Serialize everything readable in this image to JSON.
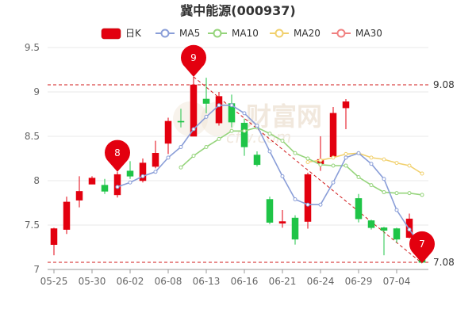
{
  "chart_data": {
    "type": "candlestick",
    "title": "冀中能源(000937)",
    "legend": [
      "日K",
      "MA5",
      "MA10",
      "MA20",
      "MA30"
    ],
    "colors": {
      "up": "#e3000f",
      "down": "#1fc447",
      "ma5": "#8a9ed8",
      "ma10": "#95d47b",
      "ma20": "#f1d06d",
      "ma30": "#f08080",
      "level_line": "#d0191a",
      "pin": "#e3000f"
    },
    "ylim": [
      7,
      9.5
    ],
    "yticks": [
      "7",
      "7.5",
      "8",
      "8.5",
      "9",
      "9.5"
    ],
    "xticks": [
      {
        "label": "05-25",
        "index": 0
      },
      {
        "label": "05-30",
        "index": 3
      },
      {
        "label": "06-02",
        "index": 6
      },
      {
        "label": "06-08",
        "index": 9
      },
      {
        "label": "06-13",
        "index": 12
      },
      {
        "label": "06-16",
        "index": 15
      },
      {
        "label": "06-21",
        "index": 18
      },
      {
        "label": "06-24",
        "index": 21
      },
      {
        "label": "06-29",
        "index": 24
      },
      {
        "label": "07-04",
        "index": 27
      }
    ],
    "candles": [
      {
        "o": 7.28,
        "c": 7.46,
        "h": 7.47,
        "l": 7.16
      },
      {
        "o": 7.45,
        "c": 7.76,
        "h": 7.82,
        "l": 7.4
      },
      {
        "o": 7.78,
        "c": 7.88,
        "h": 8.05,
        "l": 7.7
      },
      {
        "o": 7.96,
        "c": 8.03,
        "h": 8.05,
        "l": 7.96
      },
      {
        "o": 7.95,
        "c": 7.88,
        "h": 8.02,
        "l": 7.85
      },
      {
        "o": 7.84,
        "c": 8.07,
        "h": 8.1,
        "l": 7.81
      },
      {
        "o": 8.11,
        "c": 8.05,
        "h": 8.22,
        "l": 8.02
      },
      {
        "o": 8.0,
        "c": 8.2,
        "h": 8.25,
        "l": 7.98
      },
      {
        "o": 8.16,
        "c": 8.31,
        "h": 8.45,
        "l": 8.14
      },
      {
        "o": 8.42,
        "c": 8.67,
        "h": 8.71,
        "l": 8.3
      },
      {
        "o": 8.67,
        "c": 8.66,
        "h": 8.81,
        "l": 8.6
      },
      {
        "o": 8.5,
        "c": 9.08,
        "h": 9.17,
        "l": 8.5
      },
      {
        "o": 8.92,
        "c": 8.87,
        "h": 9.16,
        "l": 8.76
      },
      {
        "o": 8.65,
        "c": 8.95,
        "h": 9.0,
        "l": 8.62
      },
      {
        "o": 8.87,
        "c": 8.66,
        "h": 8.97,
        "l": 8.6
      },
      {
        "o": 8.65,
        "c": 8.38,
        "h": 8.7,
        "l": 8.28
      },
      {
        "o": 8.29,
        "c": 8.18,
        "h": 8.33,
        "l": 8.16
      },
      {
        "o": 7.79,
        "c": 7.53,
        "h": 7.82,
        "l": 7.51
      },
      {
        "o": 7.52,
        "c": 7.54,
        "h": 7.67,
        "l": 7.47
      },
      {
        "o": 7.58,
        "c": 7.34,
        "h": 7.61,
        "l": 7.28
      },
      {
        "o": 7.54,
        "c": 8.07,
        "h": 8.09,
        "l": 7.46
      },
      {
        "o": 8.19,
        "c": 8.24,
        "h": 8.5,
        "l": 8.11
      },
      {
        "o": 8.27,
        "c": 8.76,
        "h": 8.83,
        "l": 8.26
      },
      {
        "o": 8.82,
        "c": 8.89,
        "h": 8.92,
        "l": 8.58
      },
      {
        "o": 7.8,
        "c": 7.57,
        "h": 7.85,
        "l": 7.53
      },
      {
        "o": 7.55,
        "c": 7.47,
        "h": 7.56,
        "l": 7.45
      },
      {
        "o": 7.47,
        "c": 7.44,
        "h": 7.48,
        "l": 7.16
      },
      {
        "o": 7.46,
        "c": 7.34,
        "h": 7.47,
        "l": 7.3
      },
      {
        "o": 7.36,
        "c": 7.57,
        "h": 7.63,
        "l": 7.35
      },
      {
        "o": 7.12,
        "c": 7.08,
        "h": 7.19,
        "l": 7.07
      }
    ],
    "ma5": [
      null,
      null,
      null,
      null,
      null,
      7.93,
      7.98,
      8.05,
      8.1,
      8.26,
      8.38,
      8.58,
      8.72,
      8.85,
      8.85,
      8.76,
      8.62,
      8.33,
      8.05,
      7.79,
      7.73,
      7.73,
      7.98,
      8.26,
      8.31,
      8.19,
      8.02,
      7.67,
      7.45,
      7.25
    ],
    "ma10": [
      null,
      null,
      null,
      null,
      null,
      null,
      null,
      null,
      null,
      null,
      8.15,
      8.28,
      8.38,
      8.47,
      8.56,
      8.56,
      8.6,
      8.53,
      8.45,
      8.31,
      8.25,
      8.18,
      8.17,
      8.17,
      8.04,
      7.95,
      7.87,
      7.86,
      7.86,
      7.84
    ],
    "ma20": [
      null,
      null,
      null,
      null,
      null,
      null,
      null,
      null,
      null,
      null,
      null,
      null,
      null,
      null,
      null,
      null,
      null,
      null,
      null,
      null,
      8.21,
      8.23,
      8.26,
      8.3,
      8.31,
      8.26,
      8.24,
      8.2,
      8.17,
      8.08
    ],
    "ma30": [],
    "levels": [
      {
        "value": 9.08,
        "label": "9.08"
      },
      {
        "value": 7.08,
        "label": "7.08"
      }
    ],
    "pins": [
      {
        "text": "8",
        "index": 5,
        "value": 8.1
      },
      {
        "text": "9",
        "index": 11,
        "value": 9.17
      },
      {
        "text": "7",
        "index": 29,
        "value": 7.07
      }
    ],
    "trendline": {
      "from": {
        "index": 11,
        "value": 9.17
      },
      "to": {
        "index": 29,
        "value": 7.07
      }
    },
    "watermark": {
      "cn": "财富网",
      "en": "cfw.com"
    }
  }
}
